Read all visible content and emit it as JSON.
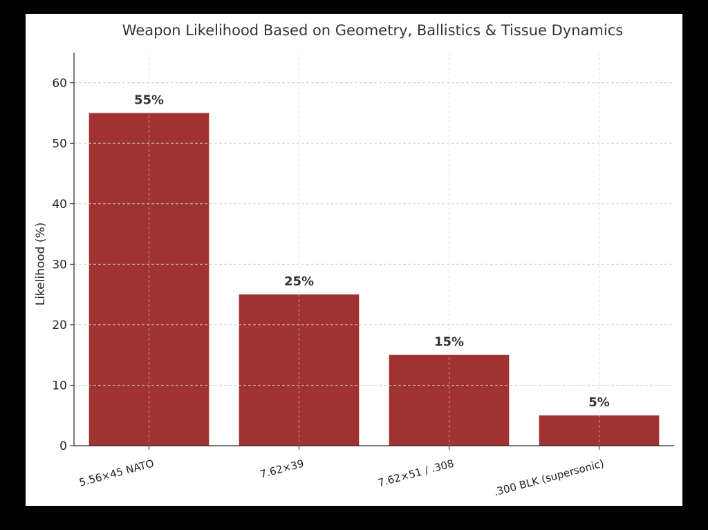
{
  "chart_data": {
    "type": "bar",
    "title": "Weapon Likelihood Based on Geometry, Ballistics & Tissue Dynamics",
    "xlabel": "",
    "ylabel": "Likelihood (%)",
    "categories": [
      "5.56×45 NATO",
      "7.62×39",
      "7.62×51 / .308",
      ".300 BLK (supersonic)"
    ],
    "values": [
      55,
      25,
      15,
      5
    ],
    "data_labels": [
      "55%",
      "25%",
      "15%",
      "5%"
    ],
    "ylim": [
      0,
      65
    ],
    "yticks": [
      0,
      10,
      20,
      30,
      40,
      50,
      60
    ],
    "grid": true,
    "bar_color": "#a03232",
    "background": "#ffffff",
    "frame_color": "#000000"
  }
}
